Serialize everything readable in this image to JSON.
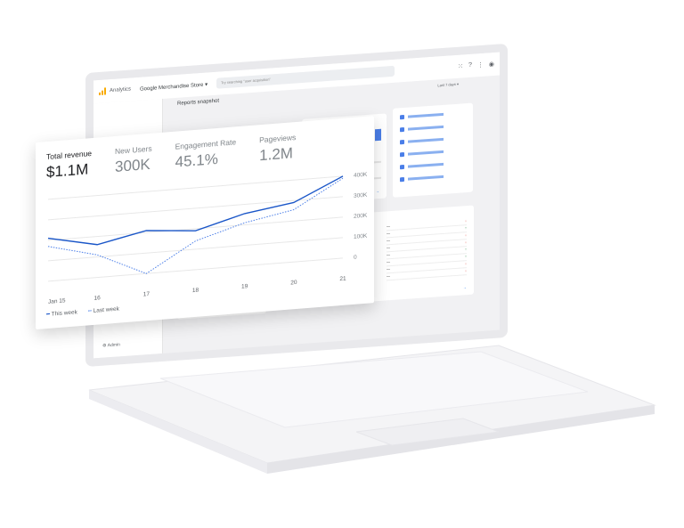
{
  "app": {
    "brand": "Analytics",
    "property": "Google Merchandise Store",
    "property_caret": "▾",
    "search_placeholder": "Try searching \"user acquisition\"",
    "page_title": "Reports snapshot",
    "admin_label": "Admin",
    "date_range": "Last 7 days ▾"
  },
  "icons": {
    "apps": "apps-icon",
    "help": "help-icon",
    "more": "more-vert-icon",
    "account": "account-icon",
    "gear": "gear-icon"
  },
  "card": {
    "metrics": [
      {
        "label": "Total revenue",
        "value": "$1.1M",
        "active": true
      },
      {
        "label": "New Users",
        "value": "300K"
      },
      {
        "label": "Engagement Rate",
        "value": "45.1%"
      },
      {
        "label": "Pageviews",
        "value": "1.2M"
      }
    ],
    "legend": {
      "this_week": "This week",
      "last_week": "Last week"
    }
  },
  "chart_data": {
    "type": "line",
    "categories": [
      "Jan 15",
      "16",
      "17",
      "18",
      "19",
      "20",
      "21"
    ],
    "yticks": [
      "0",
      "100K",
      "200K",
      "300K",
      "400K"
    ],
    "ylim": [
      0,
      400
    ],
    "series": [
      {
        "name": "This week",
        "values": [
          210,
          160,
          210,
          190,
          255,
          290,
          400
        ],
        "style": "solid"
      },
      {
        "name": "Last week",
        "values": [
          170,
          110,
          0,
          140,
          210,
          255,
          390
        ],
        "style": "dotted"
      }
    ],
    "grid": true,
    "legend": "bottom-left",
    "colors": {
      "this_week": "#1a56c8",
      "last_week": "#4a7ee8"
    }
  },
  "colors": {
    "accent": "#1a73e8",
    "logo": "#f9ab00",
    "positive": "#188038",
    "negative": "#d93025"
  }
}
